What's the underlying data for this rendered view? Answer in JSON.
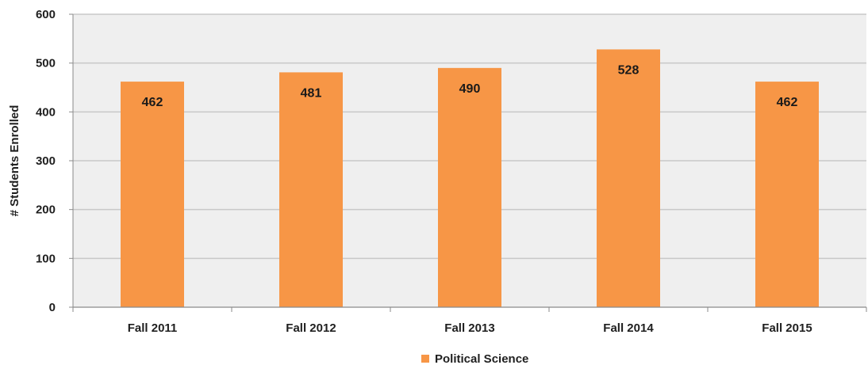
{
  "chart_data": {
    "type": "bar",
    "categories": [
      "Fall 2011",
      "Fall 2012",
      "Fall 2013",
      "Fall 2014",
      "Fall 2015"
    ],
    "series": [
      {
        "name": "Political Science",
        "values": [
          462,
          481,
          490,
          528,
          462
        ],
        "color": "#f79646"
      }
    ],
    "data_labels": [
      "462",
      "481",
      "490",
      "528",
      "462"
    ],
    "ylabel": "# Students Enrolled",
    "xlabel": "",
    "ylim": [
      0,
      600
    ],
    "yticks": [
      0,
      100,
      200,
      300,
      400,
      500,
      600
    ],
    "ytick_labels": [
      "0",
      "100",
      "200",
      "300",
      "400",
      "500",
      "600"
    ],
    "grid": true,
    "legend_position": "bottom-center",
    "plot_background": "#efefef",
    "gridline_color": "#c8c8c8"
  }
}
